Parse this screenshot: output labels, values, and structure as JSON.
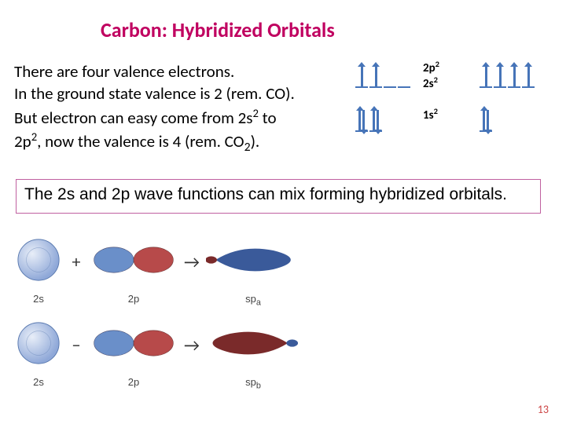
{
  "title": {
    "text": "Carbon: Hybridized Orbitals",
    "color": "#c00060"
  },
  "body": {
    "line1": "There are four valence electrons.",
    "line2_a": "In the ground state valence is 2 (rem. CO).",
    "line3_a": "But electron can easy come from 2s",
    "line3_sup": "2",
    "line3_b": " to",
    "line4_a": "2p",
    "line4_sup": "2",
    "line4_b": ", now the valence is 4 (rem. CO",
    "line4_sup2": "2",
    "line4_c": ")."
  },
  "diagrams": {
    "arrow_color": "#4674b8",
    "line_color": "#4674b8",
    "left": {
      "rows": [
        {
          "boxes": [
            {
              "up": true,
              "down": false
            },
            {
              "up": true,
              "down": false
            },
            {
              "empty": true
            },
            {
              "empty": true
            }
          ]
        },
        {
          "boxes": [
            {
              "up": true,
              "down": true
            },
            {
              "up": true,
              "down": true
            }
          ]
        }
      ]
    },
    "right": {
      "rows": [
        {
          "boxes": [
            {
              "up": true,
              "down": false
            },
            {
              "up": true,
              "down": false
            },
            {
              "up": true,
              "down": false
            },
            {
              "up": true,
              "down": false
            }
          ]
        },
        {
          "boxes": [
            {
              "up": true,
              "down": true
            }
          ]
        }
      ]
    },
    "labels": {
      "l1": "2p",
      "l1sup": "2",
      "l2": "2s",
      "l2sup": "2",
      "l3": "1s",
      "l3sup": "2"
    }
  },
  "highlight": {
    "text": "The 2s and 2p wave functions can mix forming  hybridized orbitals.",
    "border_color": "#c060a0"
  },
  "figure": {
    "s_color_outer": "#8fa8d8",
    "s_color_inner": "#e8eef8",
    "p_blue": "#6a8fc9",
    "p_red": "#b74a4a",
    "p_red_dark": "#7a2a2a",
    "sp_blue": "#3a5a9a",
    "arrow_color": "#333333",
    "labels": {
      "s": "2s",
      "p": "2p",
      "spa": "sp",
      "spa_sub": "a",
      "spb": "sp",
      "spb_sub": "b",
      "plus": "+",
      "minus": "−",
      "arrow": "→"
    }
  },
  "page": {
    "number": "13",
    "color": "#c44"
  }
}
